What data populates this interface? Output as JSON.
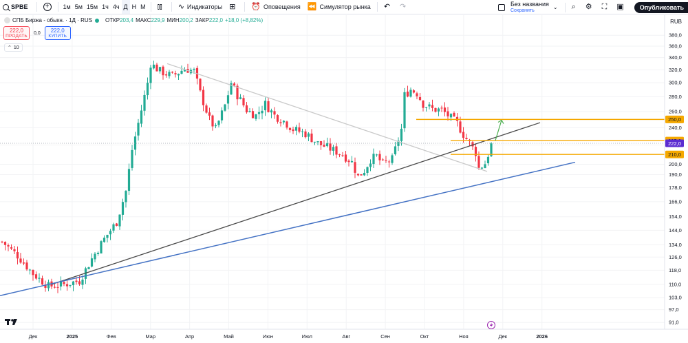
{
  "toolbar": {
    "symbol": "SPBE",
    "timeframes": [
      "1м",
      "5м",
      "15м",
      "1ч",
      "4ч",
      "Д",
      "Н",
      "М"
    ],
    "active_timeframe": "Д",
    "indicators_label": "Индикаторы",
    "alerts_label": "Оповещения",
    "replay_label": "Симулятор рынка",
    "layout_name": "Без названия",
    "layout_status": "Сохранить",
    "publish_label": "Опубликовать"
  },
  "legend": {
    "title": "СПБ Биржа - обыкн. · 1Д · RUS",
    "open_label": "ОТКР",
    "open_value": "203,4",
    "high_label": "МАКС",
    "high_value": "229,9",
    "low_label": "МИН",
    "low_value": "200,2",
    "close_label": "ЗАКР",
    "close_value": "222,0",
    "change": "+18,0 (+8,82%)",
    "sell_price": "222,0",
    "sell_label": "ПРОДАТЬ",
    "spread": "0,0",
    "buy_price": "222,0",
    "buy_label": "КУПИТЬ",
    "indicator_count": "10"
  },
  "currency": "RUB",
  "colors": {
    "up": "#22ab94",
    "down": "#f23645",
    "level_line": "#f5a800",
    "current_price": "#5b2bd1",
    "trend_black": "#4a4a4a",
    "trend_blue": "#4472c4",
    "trend_gray": "#c9c9c9",
    "arrow": "#4caf50"
  },
  "chart_data": {
    "type": "candlestick",
    "y_scale": "log",
    "ylim": [
      88,
      420
    ],
    "y_ticks": [
      "380,0",
      "360,0",
      "340,0",
      "320,0",
      "300,0",
      "280,0",
      "260,0",
      "240,0",
      "220,0",
      "200,0",
      "190,0",
      "178,0",
      "166,0",
      "154,0",
      "144,0",
      "134,0",
      "126,0",
      "118,0",
      "110,0",
      "103,0",
      "97,0",
      "91,0"
    ],
    "x_ticks": [
      {
        "label": "Дек",
        "bold": false
      },
      {
        "label": "2025",
        "bold": true
      },
      {
        "label": "Фев",
        "bold": false
      },
      {
        "label": "Мар",
        "bold": false
      },
      {
        "label": "Апр",
        "bold": false
      },
      {
        "label": "Май",
        "bold": false
      },
      {
        "label": "Июн",
        "bold": false
      },
      {
        "label": "Июл",
        "bold": false
      },
      {
        "label": "Авг",
        "bold": false
      },
      {
        "label": "Сен",
        "bold": false
      },
      {
        "label": "Окт",
        "bold": false
      },
      {
        "label": "Ноя",
        "bold": false
      },
      {
        "label": "Дек",
        "bold": false
      },
      {
        "label": "2026",
        "bold": true
      }
    ],
    "price_levels": [
      {
        "label": "250,0",
        "value": 250.0,
        "kind": "level"
      },
      {
        "label": "225,0",
        "value": 225.0,
        "kind": "level"
      },
      {
        "label": "222,0",
        "value": 222.0,
        "kind": "current"
      },
      {
        "label": "210,0",
        "value": 210.0,
        "kind": "level"
      }
    ],
    "candle_path": [
      [
        0,
        136
      ],
      [
        5,
        127
      ],
      [
        10,
        116
      ],
      [
        15,
        109
      ],
      [
        20,
        110
      ],
      [
        25,
        112
      ],
      [
        29,
        125
      ],
      [
        33,
        138
      ],
      [
        37,
        150
      ],
      [
        40,
        175
      ],
      [
        42,
        215
      ],
      [
        45,
        262
      ],
      [
        47,
        300
      ],
      [
        48,
        330
      ],
      [
        51,
        318
      ],
      [
        55,
        310
      ],
      [
        59,
        322
      ],
      [
        62,
        318
      ],
      [
        64,
        285
      ],
      [
        67,
        250
      ],
      [
        69,
        238
      ],
      [
        72,
        268
      ],
      [
        74,
        300
      ],
      [
        76,
        282
      ],
      [
        79,
        262
      ],
      [
        82,
        255
      ],
      [
        85,
        270
      ],
      [
        88,
        255
      ],
      [
        91,
        248
      ],
      [
        94,
        238
      ],
      [
        98,
        233
      ],
      [
        102,
        222
      ],
      [
        106,
        216
      ],
      [
        110,
        210
      ],
      [
        113,
        202
      ],
      [
        115,
        188
      ],
      [
        117,
        194
      ],
      [
        119,
        205
      ],
      [
        121,
        208
      ],
      [
        123,
        200
      ],
      [
        126,
        205
      ],
      [
        129,
        238
      ],
      [
        130,
        282
      ],
      [
        132,
        290
      ],
      [
        134,
        285
      ],
      [
        136,
        270
      ],
      [
        139,
        263
      ],
      [
        142,
        262
      ],
      [
        144,
        255
      ],
      [
        147,
        245
      ],
      [
        149,
        232
      ],
      [
        151,
        222
      ],
      [
        153,
        212
      ],
      [
        154,
        196
      ],
      [
        156,
        201
      ],
      [
        157,
        210
      ],
      [
        158,
        222
      ]
    ],
    "candle_seed": 7
  }
}
